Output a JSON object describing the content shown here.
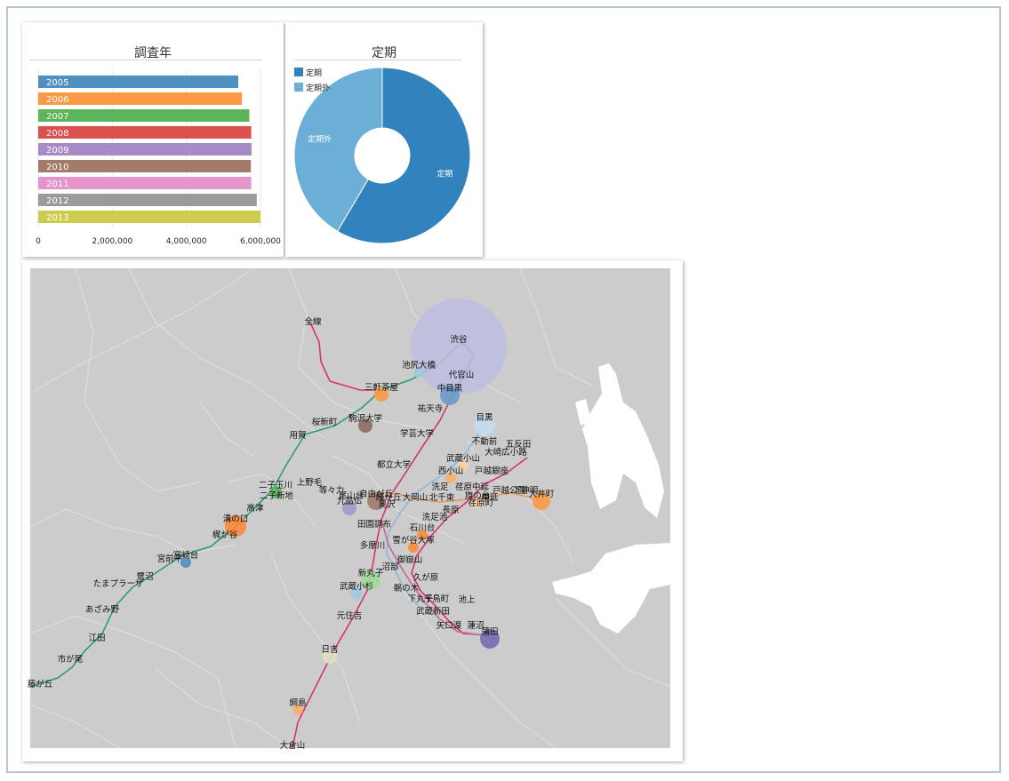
{
  "bar_panel": {
    "title": "調査年"
  },
  "pie_panel": {
    "title": "定期"
  },
  "colors": {
    "years": [
      "#4f8fc2",
      "#fb9a44",
      "#5db55b",
      "#dc5050",
      "#a88ac7",
      "#a27b6d",
      "#e595cb",
      "#9a9a9a",
      "#cdcc4e"
    ],
    "pie": [
      "#3182bd",
      "#6baed6"
    ],
    "map_bg": "#cccccc",
    "land_water": "#ffffff"
  },
  "chart_data": [
    {
      "type": "bar",
      "orientation": "horizontal",
      "title": "調査年",
      "categories": [
        "2005",
        "2006",
        "2007",
        "2008",
        "2009",
        "2010",
        "2011",
        "2012",
        "2013"
      ],
      "values": [
        5400000,
        5500000,
        5700000,
        5750000,
        5760000,
        5740000,
        5750000,
        5900000,
        6000000
      ],
      "xlim": [
        0,
        6000000
      ],
      "xticks": [
        "0",
        "2,000,000",
        "4,000,000",
        "6,000,000"
      ],
      "grid": true
    },
    {
      "type": "pie",
      "donut": true,
      "title": "定期",
      "labels": [
        "定期",
        "定期外"
      ],
      "values": [
        58.5,
        41.5
      ],
      "legend": "top-left"
    }
  ],
  "map": {
    "stations": [
      {
        "name": "全線",
        "ls": 0
      },
      {
        "name": "渋谷",
        "ls": 0
      },
      {
        "name": "池尻大橋",
        "ls": 1
      },
      {
        "name": "代官山",
        "ls": 1
      },
      {
        "name": "三軒茶屋",
        "ls": 1
      },
      {
        "name": "中目黒",
        "ls": 1
      },
      {
        "name": "祐天寺",
        "ls": 1
      },
      {
        "name": "目黒",
        "ls": 1
      },
      {
        "name": "桜新町",
        "ls": 1
      },
      {
        "name": "駒沢大学",
        "ls": 1
      },
      {
        "name": "用賀",
        "ls": 1
      },
      {
        "name": "学芸大学",
        "ls": 1
      },
      {
        "name": "不動前",
        "ls": 2
      },
      {
        "name": "五反田",
        "ls": 1
      },
      {
        "name": "大崎広小路",
        "ls": 1
      },
      {
        "name": "武蔵小山",
        "ls": 1
      },
      {
        "name": "都立大学",
        "ls": 1
      },
      {
        "name": "西小山",
        "ls": 1
      },
      {
        "name": "戸越銀座",
        "ls": 1
      },
      {
        "name": "二子玉川",
        "ls": 1
      },
      {
        "name": "上野毛",
        "ls": 1
      },
      {
        "name": "等々力",
        "ls": 1
      },
      {
        "name": "自由が丘",
        "ls": 1
      },
      {
        "name": "洗足",
        "ls": 1
      },
      {
        "name": "荏原中延",
        "ls": 1
      },
      {
        "name": "中延",
        "ls": 1
      },
      {
        "name": "大井町",
        "ls": 1
      },
      {
        "name": "二子新地",
        "ls": 1
      },
      {
        "name": "尾山台",
        "ls": 1
      },
      {
        "name": "九品仏",
        "ls": 1
      },
      {
        "name": "緑が丘",
        "ls": 1
      },
      {
        "name": "大岡山",
        "ls": 1
      },
      {
        "name": "北千束",
        "ls": 1
      },
      {
        "name": "旗の台",
        "ls": 1
      },
      {
        "name": "荏原町",
        "ls": 1
      },
      {
        "name": "戸越公園",
        "ls": 1
      },
      {
        "name": "下神明",
        "ls": 1
      },
      {
        "name": "高津",
        "ls": 1
      },
      {
        "name": "奥沢",
        "ls": 1
      },
      {
        "name": "長原",
        "ls": 1
      },
      {
        "name": "溝の口",
        "ls": 1
      },
      {
        "name": "田園調布",
        "ls": 1
      },
      {
        "name": "洗足池",
        "ls": 1
      },
      {
        "name": "石川台",
        "ls": 1
      },
      {
        "name": "梶が谷",
        "ls": 1
      },
      {
        "name": "多摩川",
        "ls": 1
      },
      {
        "name": "雪が谷大塚",
        "ls": 1
      },
      {
        "name": "宮崎台",
        "ls": 1
      },
      {
        "name": "宮前平",
        "ls": 1
      },
      {
        "name": "御嶽山",
        "ls": 1
      },
      {
        "name": "沼部",
        "ls": 1
      },
      {
        "name": "鷺沼",
        "ls": 1
      },
      {
        "name": "たまプラーザ",
        "ls": 1
      },
      {
        "name": "新丸子",
        "ls": 1
      },
      {
        "name": "久が原",
        "ls": 1
      },
      {
        "name": "武蔵小杉",
        "ls": 1
      },
      {
        "name": "鵜の木",
        "ls": 1
      },
      {
        "name": "千鳥町",
        "ls": 1
      },
      {
        "name": "下丸子",
        "ls": 1
      },
      {
        "name": "池上",
        "ls": 1
      },
      {
        "name": "あざみ野",
        "ls": 1
      },
      {
        "name": "武蔵新田",
        "ls": 1
      },
      {
        "name": "元住吉",
        "ls": 1
      },
      {
        "name": "矢口渡",
        "ls": 1
      },
      {
        "name": "蓮沼",
        "ls": 1
      },
      {
        "name": "蒲田",
        "ls": 1
      },
      {
        "name": "江田",
        "ls": 1
      },
      {
        "name": "日吉",
        "ls": 1
      },
      {
        "name": "市が尾",
        "ls": 1
      },
      {
        "name": "藤が丘",
        "ls": 1
      },
      {
        "name": "綱島",
        "ls": 1
      },
      {
        "name": "大倉山",
        "ls": 1
      }
    ]
  }
}
